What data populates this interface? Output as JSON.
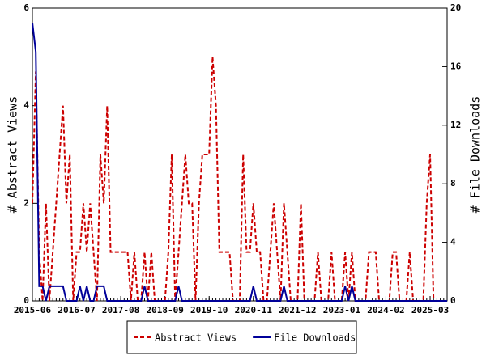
{
  "chart_data": {
    "type": "line",
    "x": [
      "2015-06",
      "2015-07",
      "2015-08",
      "2015-09",
      "2015-10",
      "2015-11",
      "2015-12",
      "2016-01",
      "2016-02",
      "2016-03",
      "2016-04",
      "2016-05",
      "2016-06",
      "2016-07",
      "2016-08",
      "2016-09",
      "2016-10",
      "2016-11",
      "2016-12",
      "2017-01",
      "2017-02",
      "2017-03",
      "2017-04",
      "2017-05",
      "2017-06",
      "2017-07",
      "2017-08",
      "2017-09",
      "2017-10",
      "2017-11",
      "2017-12",
      "2018-01",
      "2018-02",
      "2018-03",
      "2018-04",
      "2018-05",
      "2018-06",
      "2018-07",
      "2018-08",
      "2018-09",
      "2018-10",
      "2018-11",
      "2018-12",
      "2019-01",
      "2019-02",
      "2019-03",
      "2019-04",
      "2019-05",
      "2019-06",
      "2019-07",
      "2019-08",
      "2019-09",
      "2019-10",
      "2019-11",
      "2019-12",
      "2020-01",
      "2020-02",
      "2020-03",
      "2020-04",
      "2020-05",
      "2020-06",
      "2020-07",
      "2020-08",
      "2020-09",
      "2020-10",
      "2020-11",
      "2020-12",
      "2021-01",
      "2021-02",
      "2021-03",
      "2021-04",
      "2021-05",
      "2021-06",
      "2021-07",
      "2021-08",
      "2021-09",
      "2021-10",
      "2021-11",
      "2021-12",
      "2022-01",
      "2022-02",
      "2022-03",
      "2022-04",
      "2022-05",
      "2022-06",
      "2022-07",
      "2022-08",
      "2022-09",
      "2022-10",
      "2022-11",
      "2022-12",
      "2023-01",
      "2023-02",
      "2023-03",
      "2023-04",
      "2023-05",
      "2023-06",
      "2023-07",
      "2023-08",
      "2023-09",
      "2023-10",
      "2023-11",
      "2023-12",
      "2024-01",
      "2024-02",
      "2024-03",
      "2024-04",
      "2024-05",
      "2024-06",
      "2024-07",
      "2024-08",
      "2024-09",
      "2024-10",
      "2024-11",
      "2024-12",
      "2025-01",
      "2025-02",
      "2025-03",
      "2025-04",
      "2025-05",
      "2025-06",
      "2025-07",
      "2025-08"
    ],
    "series": [
      {
        "name": "Abstract Views",
        "color": "#cc0000",
        "dash": true,
        "axis": "y",
        "values": [
          2,
          4.7,
          1,
          0,
          2,
          0,
          1,
          2,
          3,
          4,
          2,
          3,
          0,
          1,
          1,
          2,
          1,
          2,
          1,
          0,
          3,
          2,
          4,
          1,
          1,
          1,
          1,
          1,
          1,
          0,
          1,
          0,
          0,
          1,
          0,
          1,
          0,
          0,
          0,
          0,
          1,
          3,
          0,
          1,
          2,
          3,
          2,
          2,
          0,
          2,
          3,
          3,
          3,
          5,
          4,
          1,
          1,
          1,
          1,
          0,
          0,
          0,
          3,
          1,
          1,
          2,
          1,
          1,
          0,
          0,
          1,
          2,
          1,
          0,
          2,
          1,
          0,
          0,
          0,
          2,
          0,
          0,
          0,
          0,
          1,
          0,
          0,
          0,
          1,
          0,
          0,
          0,
          1,
          0,
          1,
          0,
          0,
          0,
          0,
          1,
          1,
          1,
          0,
          0,
          0,
          0,
          1,
          1,
          0,
          0,
          0,
          1,
          0,
          0,
          0,
          0,
          2,
          3,
          0,
          0,
          0,
          0,
          0
        ]
      },
      {
        "name": "File Downloads",
        "color": "#000099",
        "dash": false,
        "axis": "y2",
        "values": [
          19,
          17,
          1,
          1,
          0,
          1,
          1,
          1,
          1,
          1,
          0,
          0,
          0,
          0,
          1,
          0,
          1,
          0,
          0,
          1,
          1,
          1,
          0,
          0,
          0,
          0,
          0,
          0,
          0,
          0,
          0,
          0,
          0,
          1,
          0,
          0,
          0,
          0,
          0,
          0,
          0,
          0,
          0,
          1,
          0,
          0,
          0,
          0,
          0,
          0,
          0,
          0,
          0,
          0,
          0,
          0,
          0,
          0,
          0,
          0,
          0,
          0,
          0,
          0,
          0,
          1,
          0,
          0,
          0,
          0,
          0,
          0,
          0,
          0,
          1,
          0,
          0,
          0,
          0,
          0,
          0,
          0,
          0,
          0,
          0,
          0,
          0,
          0,
          0,
          0,
          0,
          0,
          1,
          0,
          1,
          0,
          0,
          0,
          0,
          0,
          0,
          0,
          0,
          0,
          0,
          0,
          0,
          0,
          0,
          0,
          0,
          0,
          0,
          0,
          0,
          0,
          0,
          0,
          0,
          0,
          0,
          0,
          0
        ]
      }
    ],
    "xlim": [
      "2015-06",
      "2025-08"
    ],
    "xticks": [
      "2015-06",
      "2016-07",
      "2017-08",
      "2018-09",
      "2019-10",
      "2020-11",
      "2021-12",
      "2023-01",
      "2024-02",
      "2025-03"
    ],
    "ylabel": "# Abstract Views",
    "ylim": [
      0,
      6
    ],
    "yticks": [
      0,
      2,
      4,
      6
    ],
    "y2label": "# File Downloads",
    "y2lim": [
      0,
      20
    ],
    "y2ticks": [
      0,
      4,
      8,
      12,
      16,
      20
    ],
    "legend": "bottom"
  }
}
